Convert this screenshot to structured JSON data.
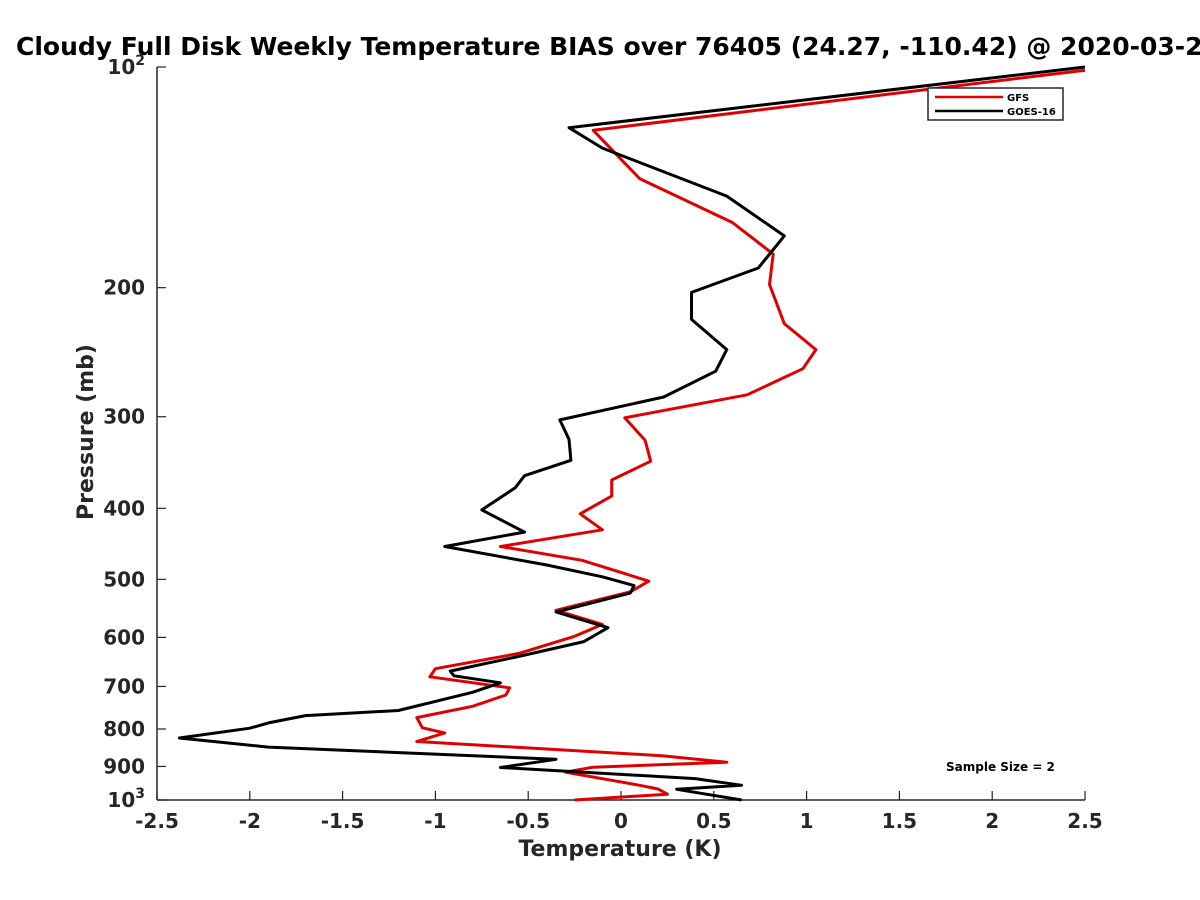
{
  "chart_data": {
    "type": "line",
    "title": "Cloudy Full Disk Weekly Temperature BIAS over 76405 (24.27, -110.42) @ 2020-03-2",
    "xlabel": "Temperature (K)",
    "ylabel": "Pressure (mb)",
    "xlim": [
      -2.5,
      2.5
    ],
    "ylim": [
      100,
      1000
    ],
    "y_scale": "log",
    "y_reversed": true,
    "grid": false,
    "legend_position": "top-right",
    "x_ticks": [
      "-2.5",
      "-2",
      "-1.5",
      "-1",
      "-0.5",
      "0",
      "0.5",
      "1",
      "1.5",
      "2",
      "2.5"
    ],
    "y_ticks": [
      {
        "value": 100,
        "base": "10",
        "exp": "2"
      },
      {
        "value": 200,
        "label": "200"
      },
      {
        "value": 300,
        "label": "300"
      },
      {
        "value": 400,
        "label": "400"
      },
      {
        "value": 500,
        "label": "500"
      },
      {
        "value": 600,
        "label": "600"
      },
      {
        "value": 700,
        "label": "700"
      },
      {
        "value": 800,
        "label": "800"
      },
      {
        "value": 900,
        "label": "900"
      },
      {
        "value": 1000,
        "base": "10",
        "exp": "3"
      }
    ],
    "annotation": "Sample Size = 2",
    "series": [
      {
        "name": "GFS",
        "color": "#e00000",
        "points": [
          [
            2.5,
            101
          ],
          [
            -0.15,
            122
          ],
          [
            0.1,
            142
          ],
          [
            0.6,
            163
          ],
          [
            0.82,
            180
          ],
          [
            0.8,
            198
          ],
          [
            0.88,
            224
          ],
          [
            1.05,
            243
          ],
          [
            0.98,
            258
          ],
          [
            0.68,
            280
          ],
          [
            0.02,
            301
          ],
          [
            0.13,
            323
          ],
          [
            0.16,
            345
          ],
          [
            -0.05,
            366
          ],
          [
            -0.05,
            385
          ],
          [
            -0.22,
            407
          ],
          [
            -0.1,
            428
          ],
          [
            -0.65,
            451
          ],
          [
            -0.21,
            471
          ],
          [
            0.02,
            491
          ],
          [
            0.15,
            503
          ],
          [
            0.05,
            520
          ],
          [
            -0.35,
            551
          ],
          [
            -0.1,
            576
          ],
          [
            -0.25,
            598
          ],
          [
            -0.55,
            631
          ],
          [
            -1.0,
            662
          ],
          [
            -1.03,
            679
          ],
          [
            -0.6,
            703
          ],
          [
            -0.62,
            719
          ],
          [
            -0.8,
            745
          ],
          [
            -1.1,
            772
          ],
          [
            -1.07,
            797
          ],
          [
            -0.95,
            810
          ],
          [
            -1.1,
            832
          ],
          [
            0.22,
            870
          ],
          [
            0.57,
            888
          ],
          [
            -0.15,
            902
          ],
          [
            -0.3,
            916
          ],
          [
            0.1,
            955
          ],
          [
            0.2,
            966
          ],
          [
            0.25,
            982
          ],
          [
            -0.25,
            1000
          ]
        ]
      },
      {
        "name": "GOES-16",
        "color": "#000000",
        "points": [
          [
            2.5,
            100
          ],
          [
            -0.28,
            121
          ],
          [
            -0.1,
            129
          ],
          [
            0.57,
            150
          ],
          [
            0.88,
            170
          ],
          [
            0.74,
            188
          ],
          [
            0.38,
            203
          ],
          [
            0.38,
            221
          ],
          [
            0.57,
            243
          ],
          [
            0.51,
            260
          ],
          [
            0.23,
            282
          ],
          [
            -0.33,
            303
          ],
          [
            -0.28,
            322
          ],
          [
            -0.27,
            344
          ],
          [
            -0.52,
            361
          ],
          [
            -0.57,
            375
          ],
          [
            -0.75,
            402
          ],
          [
            -0.52,
            431
          ],
          [
            -0.95,
            451
          ],
          [
            -0.4,
            478
          ],
          [
            -0.1,
            496
          ],
          [
            0.07,
            510
          ],
          [
            0.05,
            522
          ],
          [
            -0.35,
            554
          ],
          [
            -0.07,
            582
          ],
          [
            -0.2,
            608
          ],
          [
            -0.55,
            637
          ],
          [
            -0.92,
            667
          ],
          [
            -0.9,
            677
          ],
          [
            -0.65,
            692
          ],
          [
            -0.8,
            713
          ],
          [
            -1.2,
            755
          ],
          [
            -1.7,
            767
          ],
          [
            -1.9,
            785
          ],
          [
            -2.0,
            798
          ],
          [
            -2.38,
            823
          ],
          [
            -1.9,
            847
          ],
          [
            -0.35,
            880
          ],
          [
            -0.65,
            903
          ],
          [
            0.4,
            935
          ],
          [
            0.65,
            955
          ],
          [
            0.3,
            967
          ],
          [
            0.65,
            1000
          ]
        ]
      }
    ]
  }
}
